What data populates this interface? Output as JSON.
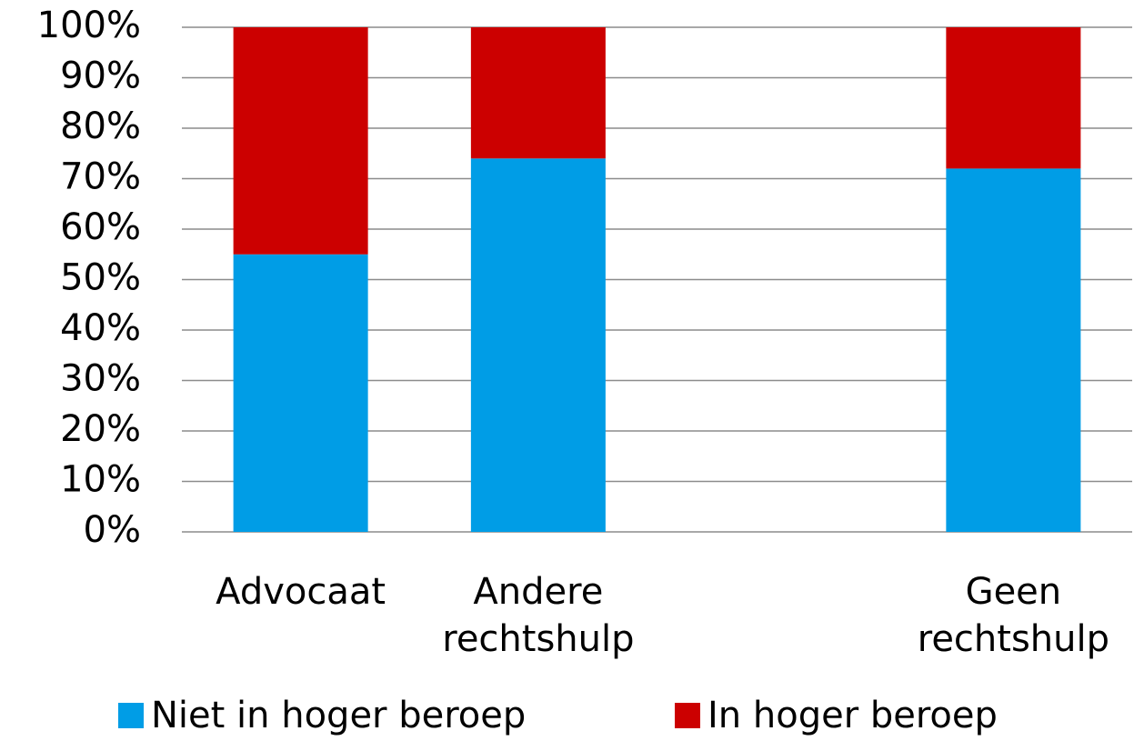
{
  "chart_data": {
    "type": "stacked_bar",
    "categories": [
      "Advocaat",
      "Andere rechtshulp",
      null,
      "Geen rechtshulp"
    ],
    "series": [
      {
        "name": "Niet in hoger beroep",
        "color": "#009de6",
        "values": [
          55,
          74,
          null,
          72
        ]
      },
      {
        "name": "In hoger beroep",
        "color": "#cc0000",
        "values": [
          45,
          26,
          null,
          28
        ]
      }
    ],
    "ylim": [
      0,
      100
    ],
    "yticks": [
      {
        "value": 0,
        "label": "0%"
      },
      {
        "value": 10,
        "label": "10%"
      },
      {
        "value": 20,
        "label": "20%"
      },
      {
        "value": 30,
        "label": "30%"
      },
      {
        "value": 40,
        "label": "40%"
      },
      {
        "value": 50,
        "label": "50%"
      },
      {
        "value": 60,
        "label": "60%"
      },
      {
        "value": 70,
        "label": "70%"
      },
      {
        "value": 80,
        "label": "80%"
      },
      {
        "value": 90,
        "label": "90%"
      },
      {
        "value": 100,
        "label": "100%"
      }
    ],
    "grid": true,
    "legend": "bottom"
  }
}
